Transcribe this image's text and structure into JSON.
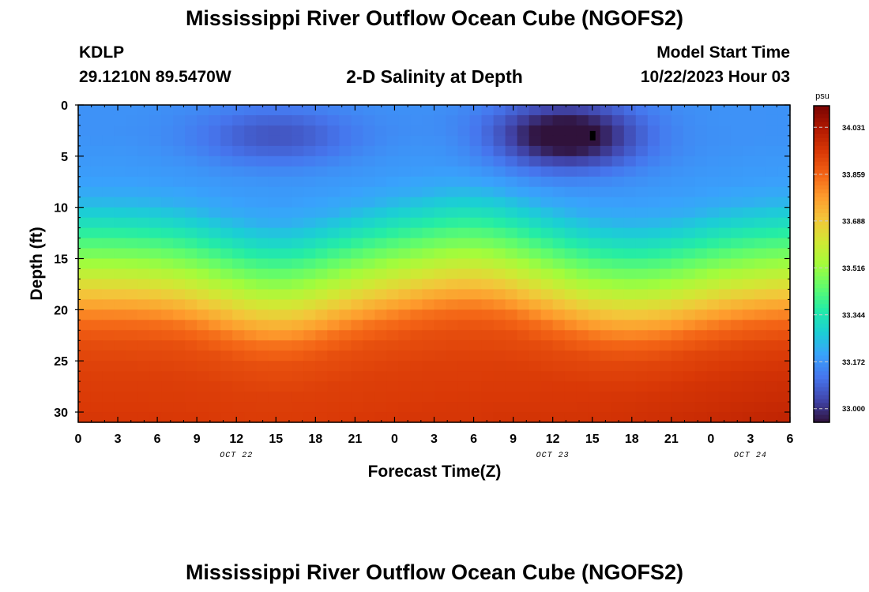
{
  "header": {
    "title": "Mississippi River Outflow Ocean Cube (NGOFS2)",
    "station_id": "KDLP",
    "coords": "29.1210N  89.5470W",
    "subtitle": "2-D Salinity at Depth",
    "start_label": "Model Start Time",
    "start_value": "10/22/2023 Hour 03"
  },
  "footer": {
    "title": "Mississippi River Outflow Ocean Cube (NGOFS2)"
  },
  "chart_data": {
    "type": "heatmap",
    "xlabel": "Forecast Time(Z)",
    "ylabel": "Depth (ft)",
    "x_ticks": [
      "0",
      "3",
      "6",
      "9",
      "12",
      "15",
      "18",
      "21",
      "0",
      "3",
      "6",
      "9",
      "12",
      "15",
      "18",
      "21",
      "0",
      "3",
      "6"
    ],
    "date_labels": [
      {
        "label": "OCT 22",
        "hour_index": 12
      },
      {
        "label": "OCT 23",
        "hour_index": 36
      },
      {
        "label": "OCT 24",
        "hour_index": 51
      }
    ],
    "y_ticks": [
      0,
      5,
      10,
      15,
      20,
      25,
      30
    ],
    "ylim": [
      0,
      31
    ],
    "hours": 54,
    "colorbar": {
      "unit": "psu",
      "min": 32.95,
      "max": 34.11,
      "ticks": [
        "34.031",
        "33.859",
        "33.688",
        "33.516",
        "33.344",
        "33.172",
        "33.000"
      ],
      "tick_values": [
        34.031,
        33.859,
        33.688,
        33.516,
        33.344,
        33.172,
        33.0
      ],
      "colors": [
        "#30123b",
        "#4145ab",
        "#4675ed",
        "#39a2fc",
        "#1bcfd4",
        "#24eca6",
        "#61fc6c",
        "#a4fc3b",
        "#d1e834",
        "#f3c63a",
        "#fe9b2d",
        "#f36315",
        "#d93806",
        "#b11901",
        "#7a0403"
      ]
    },
    "salinity_profile": {
      "depth_ft": [
        0,
        3,
        7,
        9,
        11,
        13,
        15,
        17,
        19,
        21,
        23,
        26,
        29,
        31
      ],
      "base_psu": [
        33.17,
        33.17,
        33.19,
        33.22,
        33.3,
        33.4,
        33.5,
        33.61,
        33.73,
        33.84,
        33.9,
        33.93,
        33.94,
        33.95
      ],
      "note": "Two fresh cores near 3 ft centered at hour 15 (mild) and hour 36 (strong, ~32.96 psu); halocline deepens near hours 15 and 42"
    },
    "marker": {
      "hour": 39,
      "depth_ft": 3
    }
  }
}
